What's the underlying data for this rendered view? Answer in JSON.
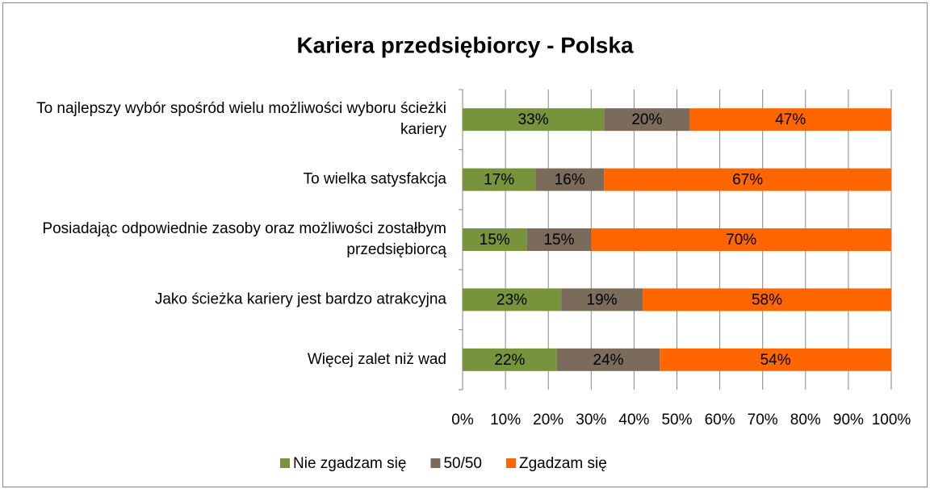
{
  "chart_data": {
    "type": "bar",
    "orientation": "horizontal",
    "stacked": true,
    "title": "Kariera przedsiębiorcy - Polska",
    "categories": [
      "To najlepszy wybór spośród wielu możliwości wyboru ścieżki kariery",
      "To wielka satysfakcja",
      "Posiadając odpowiednie zasoby oraz możliwości zostałbym przedsiębiorcą",
      "Jako ścieżka kariery jest bardzo atrakcyjna",
      "Więcej zalet niż wad"
    ],
    "series": [
      {
        "name": "Nie zgadzam się",
        "color": "#77933c",
        "values": [
          33,
          17,
          15,
          23,
          22
        ],
        "value_labels": [
          "33%",
          "17%",
          "15%",
          "23%",
          "22%"
        ]
      },
      {
        "name": "50/50",
        "color": "#7a6b5b",
        "values": [
          20,
          16,
          15,
          19,
          24
        ],
        "value_labels": [
          "20%",
          "16%",
          "15%",
          "19%",
          "24%"
        ]
      },
      {
        "name": "Zgadzam się",
        "color": "#ff6600",
        "values": [
          47,
          67,
          70,
          58,
          54
        ],
        "value_labels": [
          "47%",
          "67%",
          "70%",
          "58%",
          "54%"
        ]
      }
    ],
    "xlim": [
      0,
      100
    ],
    "xticks": [
      {
        "value": 0,
        "label": "0%"
      },
      {
        "value": 10,
        "label": "10%"
      },
      {
        "value": 20,
        "label": "20%"
      },
      {
        "value": 30,
        "label": "30%"
      },
      {
        "value": 40,
        "label": "40%"
      },
      {
        "value": 50,
        "label": "50%"
      },
      {
        "value": 60,
        "label": "60%"
      },
      {
        "value": 70,
        "label": "70%"
      },
      {
        "value": 80,
        "label": "80%"
      },
      {
        "value": 90,
        "label": "90%"
      },
      {
        "value": 100,
        "label": "100%"
      }
    ],
    "grid": true,
    "legend": "bottom"
  }
}
